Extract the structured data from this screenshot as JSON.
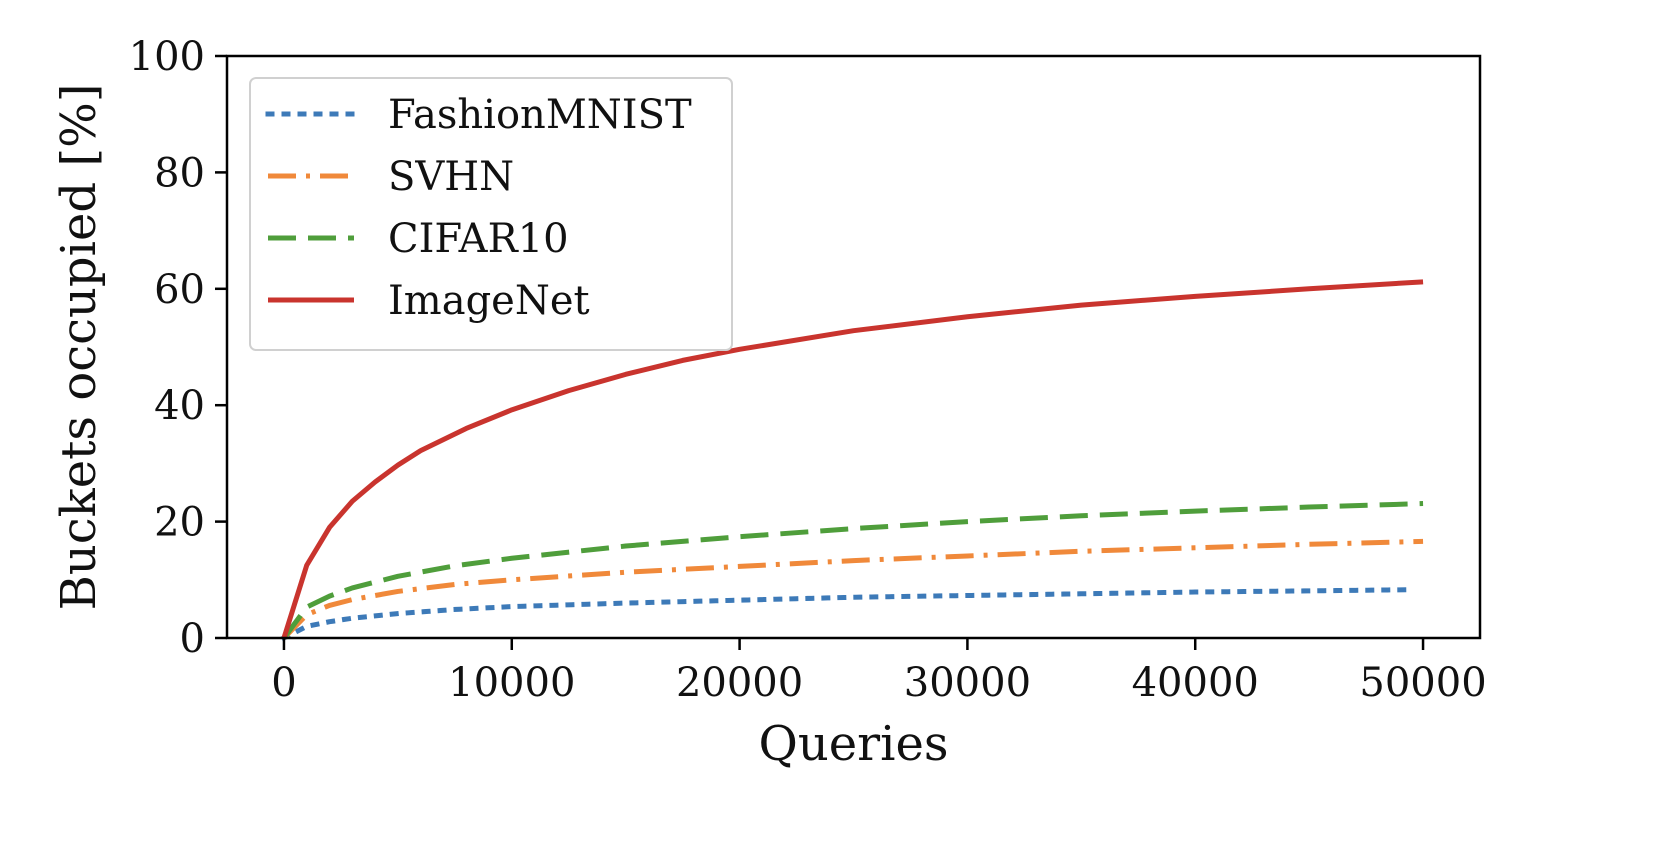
{
  "chart_data": {
    "type": "line",
    "title": "",
    "xlabel": "Queries",
    "ylabel": "Buckets occupied [%]",
    "xlim": [
      -2500,
      52500
    ],
    "ylim": [
      0,
      100
    ],
    "x_ticks": [
      0,
      10000,
      20000,
      30000,
      40000,
      50000
    ],
    "x_tick_labels": [
      "0",
      "10000",
      "20000",
      "30000",
      "40000",
      "50000"
    ],
    "y_ticks": [
      0,
      20,
      40,
      60,
      80,
      100
    ],
    "y_tick_labels": [
      "0",
      "20",
      "40",
      "60",
      "80",
      "100"
    ],
    "grid": false,
    "legend_position": "top-left",
    "series": [
      {
        "name": "FashionMNIST",
        "color": "#3d7ab8",
        "dash": "dotted",
        "x": [
          0,
          1000,
          2000,
          3000,
          5000,
          7500,
          10000,
          15000,
          20000,
          25000,
          30000,
          35000,
          40000,
          45000,
          49500
        ],
        "y": [
          0,
          2.0,
          2.8,
          3.4,
          4.2,
          4.9,
          5.4,
          6.0,
          6.5,
          7.0,
          7.3,
          7.6,
          7.9,
          8.1,
          8.3
        ]
      },
      {
        "name": "SVHN",
        "color": "#f0893a",
        "dash": "dashdot",
        "x": [
          0,
          1000,
          2000,
          3000,
          5000,
          7500,
          10000,
          15000,
          20000,
          25000,
          30000,
          35000,
          40000,
          45000,
          50000
        ],
        "y": [
          0,
          4.0,
          5.6,
          6.6,
          8.0,
          9.2,
          10.0,
          11.3,
          12.3,
          13.3,
          14.1,
          14.9,
          15.5,
          16.1,
          16.6
        ]
      },
      {
        "name": "CIFAR10",
        "color": "#4f9e3b",
        "dash": "dashed",
        "x": [
          0,
          1000,
          2000,
          3000,
          5000,
          7500,
          10000,
          15000,
          20000,
          25000,
          30000,
          35000,
          40000,
          45000,
          50000
        ],
        "y": [
          0,
          5.3,
          7.2,
          8.6,
          10.6,
          12.4,
          13.7,
          15.8,
          17.4,
          18.8,
          20.0,
          21.0,
          21.8,
          22.5,
          23.1
        ]
      },
      {
        "name": "ImageNet",
        "color": "#c9342e",
        "dash": "solid",
        "x": [
          0,
          1000,
          2000,
          3000,
          4000,
          5000,
          6000,
          8000,
          10000,
          12500,
          15000,
          17500,
          20000,
          25000,
          30000,
          35000,
          40000,
          45000,
          50000
        ],
        "y": [
          0,
          12.5,
          19.0,
          23.5,
          26.8,
          29.7,
          32.2,
          36.0,
          39.2,
          42.5,
          45.3,
          47.7,
          49.6,
          52.8,
          55.2,
          57.2,
          58.7,
          60.0,
          61.2
        ]
      }
    ]
  }
}
